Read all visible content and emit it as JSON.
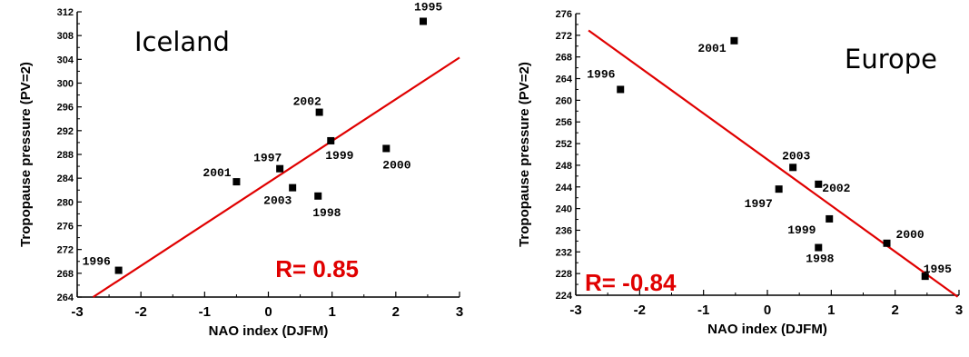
{
  "chart_data": [
    {
      "type": "scatter",
      "title": "Iceland",
      "xlabel": "NAO index (DJFM)",
      "ylabel": "Tropopause pressure (PV=2)",
      "xlim": [
        -3,
        3
      ],
      "ylim": [
        264,
        312
      ],
      "xticks": [
        "-3",
        "-2",
        "-1",
        "0",
        "1",
        "2",
        "3"
      ],
      "yticks": [
        "264",
        "268",
        "272",
        "276",
        "280",
        "284",
        "288",
        "292",
        "296",
        "300",
        "304",
        "308",
        "312"
      ],
      "annotation": "R= 0.85",
      "fit_line": {
        "x": [
          -2.75,
          3
        ],
        "y": [
          264,
          304.3
        ],
        "color": "#e00000"
      },
      "points": [
        {
          "label": "1995",
          "x": 2.43,
          "y": 310.4
        },
        {
          "label": "1996",
          "x": -2.35,
          "y": 268.5
        },
        {
          "label": "1997",
          "x": 0.18,
          "y": 285.6
        },
        {
          "label": "1998",
          "x": 0.78,
          "y": 281.0
        },
        {
          "label": "1999",
          "x": 0.98,
          "y": 290.3
        },
        {
          "label": "2000",
          "x": 1.85,
          "y": 289.0
        },
        {
          "label": "2001",
          "x": -0.5,
          "y": 283.4
        },
        {
          "label": "2002",
          "x": 0.8,
          "y": 295.1
        },
        {
          "label": "2003",
          "x": 0.38,
          "y": 282.4
        }
      ]
    },
    {
      "type": "scatter",
      "title": "Europe",
      "xlabel": "NAO index (DJFM)",
      "ylabel": "Tropopause pressure (PV=2)",
      "xlim": [
        -3,
        3
      ],
      "ylim": [
        224,
        276
      ],
      "xticks": [
        "-3",
        "-2",
        "-1",
        "0",
        "1",
        "2",
        "3"
      ],
      "yticks": [
        "224",
        "228",
        "232",
        "236",
        "240",
        "244",
        "248",
        "252",
        "256",
        "260",
        "264",
        "268",
        "272",
        "276"
      ],
      "annotation": "R= -0.84",
      "fit_line": {
        "x": [
          -2.8,
          2.98
        ],
        "y": [
          272.9,
          223.7
        ],
        "color": "#e00000"
      },
      "points": [
        {
          "label": "1995",
          "x": 2.47,
          "y": 227.5
        },
        {
          "label": "1996",
          "x": -2.3,
          "y": 262.0
        },
        {
          "label": "1997",
          "x": 0.18,
          "y": 243.6
        },
        {
          "label": "1998",
          "x": 0.8,
          "y": 232.8
        },
        {
          "label": "1999",
          "x": 0.97,
          "y": 238.1
        },
        {
          "label": "2000",
          "x": 1.87,
          "y": 233.6
        },
        {
          "label": "2001",
          "x": -0.52,
          "y": 271.0
        },
        {
          "label": "2002",
          "x": 0.8,
          "y": 244.5
        },
        {
          "label": "2003",
          "x": 0.4,
          "y": 247.6
        }
      ]
    }
  ]
}
